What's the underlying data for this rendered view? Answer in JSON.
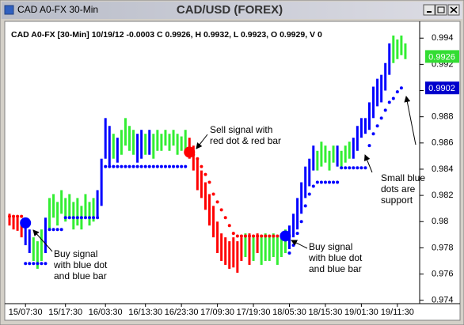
{
  "window_title": "CAD A0-FX 30-Min",
  "chart_data": {
    "type": "ohlc",
    "title": "CAD/USD (FOREX)",
    "subtitle": "CAD A0-FX [30-Min] 10/19/12  -0.0003 C 0.9926, H 0.9932, L 0.9923, O 0.9929, V 0",
    "categories": [
      null,
      null,
      null,
      null,
      "15/07:30",
      null,
      null,
      null,
      null,
      null,
      null,
      null,
      null,
      null,
      "15/17:30",
      null,
      null,
      null,
      null,
      null,
      null,
      null,
      null,
      null,
      "16/03:30",
      null,
      null,
      null,
      null,
      null,
      null,
      null,
      null,
      null,
      "16/13:30",
      null,
      null,
      null,
      null,
      null,
      null,
      null,
      null,
      "16/23:30",
      null,
      null,
      null,
      null,
      null,
      null,
      null,
      null,
      "17/09:30",
      null,
      null,
      null,
      null,
      null,
      null,
      null,
      null,
      "17/19:30",
      null,
      null,
      null,
      null,
      null,
      null,
      null,
      null,
      "18/05:30",
      null,
      null,
      null,
      null,
      null,
      null,
      null,
      null,
      "18/15:30",
      null,
      null,
      null,
      null,
      null,
      null,
      null,
      null,
      "19/01:30",
      null,
      null,
      null,
      null,
      null,
      null,
      null,
      null,
      "19/11:30",
      null,
      null
    ],
    "high": [
      0.9806,
      0.9805,
      0.9803,
      0.9801,
      0.9799,
      0.9794,
      0.9788,
      0.9785,
      0.9794,
      0.9803,
      0.9818,
      0.9821,
      0.9815,
      0.9824,
      0.9818,
      0.9821,
      0.9815,
      0.9818,
      0.9812,
      0.9821,
      0.9815,
      0.9818,
      0.9824,
      0.9848,
      0.9879,
      0.9873,
      0.9867,
      0.9864,
      0.987,
      0.9879,
      0.9873,
      0.987,
      0.9867,
      0.987,
      0.9867,
      0.987,
      0.9867,
      0.987,
      0.9867,
      0.987,
      0.9867,
      0.987,
      0.9867,
      0.9865,
      0.987,
      0.9864,
      0.9858,
      0.9848,
      0.9839,
      0.983,
      0.9821,
      0.9812,
      0.98,
      0.9791,
      0.9788,
      0.9785,
      0.9788,
      0.9785,
      0.9788,
      0.9791,
      0.9791,
      0.9788,
      0.9791,
      0.9788,
      0.9791,
      0.9788,
      0.9791,
      0.9788,
      0.9791,
      0.9794,
      0.9797,
      0.9806,
      0.9818,
      0.983,
      0.9842,
      0.9848,
      0.9858,
      0.9854,
      0.9861,
      0.9858,
      0.9854,
      0.9858,
      0.9858,
      0.9854,
      0.9858,
      0.9861,
      0.9864,
      0.9873,
      0.9879,
      0.9879,
      0.9891,
      0.9903,
      0.9909,
      0.9912,
      0.9921,
      0.9936,
      0.9942,
      0.9939,
      0.9942,
      0.9936
    ],
    "low": [
      0.9797,
      0.9794,
      0.9793,
      0.9788,
      0.9782,
      0.9776,
      0.977,
      0.9764,
      0.977,
      0.9776,
      0.9794,
      0.9803,
      0.9797,
      0.9806,
      0.98,
      0.9803,
      0.9794,
      0.9797,
      0.9794,
      0.9803,
      0.9797,
      0.98,
      0.9803,
      0.9812,
      0.9848,
      0.9842,
      0.9848,
      0.9845,
      0.9851,
      0.9858,
      0.9854,
      0.9851,
      0.9845,
      0.9848,
      0.9851,
      0.9851,
      0.9848,
      0.9854,
      0.9854,
      0.9858,
      0.9854,
      0.9858,
      0.9851,
      0.9854,
      0.9854,
      0.9848,
      0.9839,
      0.9824,
      0.9818,
      0.9809,
      0.9797,
      0.9788,
      0.9776,
      0.977,
      0.9767,
      0.9764,
      0.9765,
      0.9761,
      0.977,
      0.9773,
      0.9767,
      0.977,
      0.9776,
      0.9767,
      0.977,
      0.977,
      0.9773,
      0.9767,
      0.9773,
      0.9776,
      0.9779,
      0.9788,
      0.9794,
      0.9806,
      0.9818,
      0.9827,
      0.9839,
      0.9839,
      0.9842,
      0.9845,
      0.9839,
      0.9845,
      0.9842,
      0.9842,
      0.9845,
      0.9848,
      0.9848,
      0.9854,
      0.9864,
      0.9867,
      0.987,
      0.9879,
      0.9888,
      0.9891,
      0.99,
      0.9912,
      0.9921,
      0.9924,
      0.9927,
      0.9924
    ],
    "bar_colors": [
      "#f00",
      "#f00",
      "#f00",
      "#f00",
      "#00f",
      "#00f",
      "#3e3",
      "#3e3",
      "#3e3",
      "#00f",
      "#3e3",
      "#3e3",
      "#3e3",
      "#3e3",
      "#3e3",
      "#3e3",
      "#3e3",
      "#3e3",
      "#3e3",
      "#3e3",
      "#3e3",
      "#3e3",
      "#00f",
      "#00f",
      "#00f",
      "#00f",
      "#3e3",
      "#00f",
      "#3e3",
      "#3e3",
      "#3e3",
      "#3e3",
      "#00f",
      "#00f",
      "#3e3",
      "#00f",
      "#3e3",
      "#3e3",
      "#3e3",
      "#3e3",
      "#3e3",
      "#3e3",
      "#3e3",
      "#3e3",
      "#3e3",
      "#f00",
      "#f00",
      "#f00",
      "#f00",
      "#f00",
      "#f00",
      "#f00",
      "#f00",
      "#f00",
      "#f00",
      "#f00",
      "#f00",
      "#f00",
      "#f00",
      "#3e3",
      "#f00",
      "#3e3",
      "#f00",
      "#3e3",
      "#3e3",
      "#3e3",
      "#3e3",
      "#3e3",
      "#3e3",
      "#3e3",
      "#00f",
      "#00f",
      "#00f",
      "#00f",
      "#00f",
      "#00f",
      "#00f",
      "#3e3",
      "#3e3",
      "#3e3",
      "#3e3",
      "#3e3",
      "#00f",
      "#3e3",
      "#3e3",
      "#3e3",
      "#00f",
      "#00f",
      "#00f",
      "#00f",
      "#00f",
      "#00f",
      "#00f",
      "#00f",
      "#00f",
      "#00f",
      "#3e3",
      "#3e3",
      "#3e3",
      "#3e3"
    ],
    "support_color": "#00f",
    "support": [
      null,
      null,
      null,
      null,
      0.9768,
      0.9768,
      0.9768,
      0.9768,
      0.9768,
      0.9768,
      0.9794,
      0.9794,
      0.9794,
      0.9794,
      0.9803,
      0.9803,
      0.9803,
      0.9803,
      0.9803,
      0.9803,
      0.9803,
      0.9803,
      0.9803,
      null,
      0.9842,
      0.9842,
      0.9842,
      0.9842,
      0.9842,
      0.9842,
      0.9842,
      0.9842,
      0.9842,
      0.9842,
      0.9842,
      0.9842,
      0.9842,
      0.9842,
      0.9842,
      0.9842,
      0.9842,
      0.9842,
      0.9842,
      0.9842,
      0.9842,
      null,
      null,
      null,
      null,
      null,
      null,
      null,
      null,
      null,
      null,
      null,
      null,
      null,
      null,
      null,
      null,
      null,
      null,
      null,
      null,
      null,
      null,
      null,
      null,
      null,
      0.9776,
      0.9782,
      0.9791,
      0.98,
      0.9812,
      0.9821,
      0.9827,
      0.983,
      0.983,
      0.983,
      0.983,
      0.983,
      0.983,
      0.9841,
      0.9841,
      0.9841,
      0.9841,
      0.9841,
      0.9841,
      0.9841,
      0.9858,
      0.9867,
      0.9873,
      0.9879,
      0.9885,
      0.9891,
      0.9894,
      0.9899,
      0.9902,
      null
    ],
    "resistance_color": "#f00",
    "resistance": [
      0.9804,
      0.9804,
      0.9804,
      0.9804,
      null,
      null,
      null,
      null,
      null,
      null,
      null,
      null,
      null,
      null,
      null,
      null,
      null,
      null,
      null,
      null,
      null,
      null,
      null,
      null,
      null,
      null,
      null,
      null,
      null,
      null,
      null,
      null,
      null,
      null,
      null,
      null,
      null,
      null,
      null,
      null,
      null,
      null,
      null,
      null,
      null,
      null,
      0.9851,
      0.9848,
      0.9842,
      0.9836,
      0.983,
      0.9821,
      0.9815,
      0.9809,
      0.9803,
      0.9797,
      0.9791,
      0.9789,
      0.9789,
      0.9789,
      0.9789,
      0.9789,
      0.9789,
      0.9789,
      0.9789,
      0.9789,
      0.9789,
      0.9789,
      0.9789,
      0.9789,
      null,
      null,
      null,
      null,
      null,
      null,
      null,
      null,
      null,
      null,
      null,
      null,
      null,
      null,
      null,
      null,
      null,
      null,
      null,
      null,
      null,
      null,
      null,
      null,
      null,
      null,
      null,
      null,
      null,
      null
    ],
    "signals": [
      {
        "bar": 4,
        "price": 0.9799,
        "color": "#0000ff"
      },
      {
        "bar": 45,
        "price": 0.9853,
        "color": "#ff0000"
      },
      {
        "bar": 69,
        "price": 0.9789,
        "color": "#0000ff"
      }
    ],
    "last_values": [
      {
        "value": 0.9926,
        "color": "#33dd33"
      },
      {
        "value": 0.9902,
        "color": "#0000cc"
      }
    ],
    "ylim": [
      0.9738,
      0.9951
    ],
    "yticks": [
      0.974,
      0.976,
      0.978,
      0.98,
      0.982,
      0.984,
      0.986,
      0.988,
      0.99,
      0.992,
      0.994
    ],
    "grid": false,
    "annotations": [
      {
        "lines": [
          "Sell signal with",
          "red dot & red bar"
        ]
      },
      {
        "lines": [
          "Buy signal",
          "with blue dot",
          "and blue bar"
        ]
      },
      {
        "lines": [
          "Buy signal",
          "with blue dot",
          "and blue bar"
        ]
      },
      {
        "lines": [
          "Small blue",
          "dots are",
          "support"
        ]
      }
    ]
  }
}
